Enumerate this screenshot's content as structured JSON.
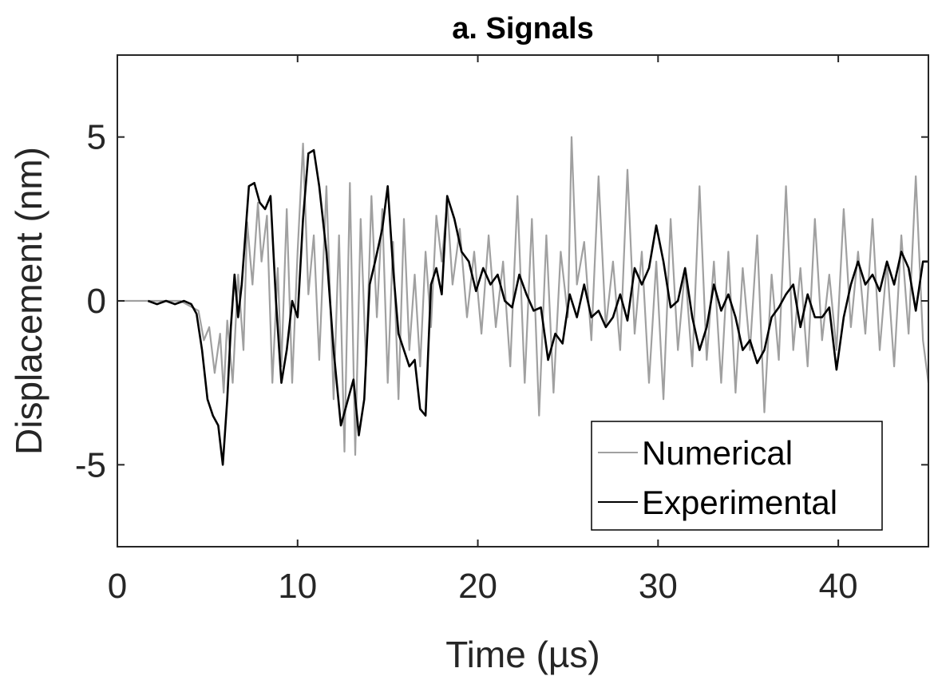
{
  "chart_data": {
    "type": "line",
    "title": "a. Signals",
    "xlabel": "Time (µs)",
    "ylabel": "Displacement (nm)",
    "xlim": [
      0,
      45
    ],
    "ylim": [
      -7.5,
      7.5
    ],
    "xticks": [
      0,
      10,
      20,
      30,
      40
    ],
    "xtick_labels": [
      "0",
      "10",
      "20",
      "30",
      "40"
    ],
    "yticks": [
      -5,
      0,
      5
    ],
    "ytick_labels": [
      "-5",
      "0",
      "5"
    ],
    "grid": false,
    "legend_position": "bottom-right",
    "series": [
      {
        "name": "Numerical",
        "color": "#a0a0a0",
        "x": [
          0,
          3.5,
          4.5,
          4.8,
          5.1,
          5.4,
          5.7,
          5.9,
          6.1,
          6.4,
          6.7,
          7.0,
          7.2,
          7.5,
          7.8,
          8.0,
          8.3,
          8.6,
          8.9,
          9.1,
          9.4,
          9.7,
          10.0,
          10.3,
          10.6,
          10.9,
          11.2,
          11.6,
          12.0,
          12.3,
          12.6,
          12.9,
          13.2,
          13.5,
          13.8,
          14.1,
          14.4,
          14.7,
          15.0,
          15.3,
          15.6,
          15.9,
          16.2,
          16.5,
          16.8,
          17.1,
          17.4,
          17.7,
          18.0,
          18.3,
          18.6,
          19.0,
          19.4,
          19.8,
          20.2,
          20.6,
          21.0,
          21.4,
          21.8,
          22.2,
          22.6,
          23.0,
          23.4,
          23.8,
          24.2,
          24.6,
          25.0,
          25.2,
          25.5,
          25.9,
          26.3,
          26.7,
          27.1,
          27.5,
          27.9,
          28.3,
          28.7,
          29.1,
          29.5,
          29.9,
          30.3,
          30.7,
          31.1,
          31.5,
          31.9,
          32.3,
          32.7,
          33.1,
          33.5,
          33.9,
          34.3,
          34.7,
          35.1,
          35.5,
          35.9,
          36.3,
          36.7,
          37.1,
          37.5,
          37.9,
          38.3,
          38.7,
          39.1,
          39.5,
          39.9,
          40.3,
          40.7,
          41.1,
          41.5,
          41.9,
          42.3,
          42.7,
          43.1,
          43.5,
          43.9,
          44.3,
          44.7,
          45.0
        ],
        "y": [
          0,
          0,
          -0.3,
          -1.2,
          -0.8,
          -2.2,
          -1.0,
          -2.8,
          -0.6,
          -2.5,
          0.8,
          -1.5,
          2.4,
          0.5,
          3.0,
          1.2,
          2.6,
          -2.5,
          1.0,
          -2.0,
          2.8,
          -2.5,
          1.5,
          4.8,
          0.2,
          2.0,
          -1.8,
          3.5,
          -3.0,
          2.0,
          -4.6,
          3.6,
          -4.7,
          2.5,
          -2.0,
          3.2,
          -0.5,
          2.8,
          -2.5,
          1.8,
          -3.0,
          2.5,
          -1.5,
          0.8,
          -2.0,
          1.5,
          -0.8,
          2.6,
          1.2,
          3.0,
          0.5,
          2.2,
          -0.5,
          1.5,
          -1.0,
          2.0,
          -0.8,
          1.2,
          -2.0,
          3.2,
          -2.5,
          2.5,
          -3.5,
          2.0,
          -2.8,
          1.5,
          -0.5,
          5.0,
          0.5,
          1.8,
          -1.2,
          3.8,
          -0.8,
          1.2,
          -1.5,
          4.0,
          -1.0,
          1.5,
          -2.5,
          1.2,
          -3.0,
          2.5,
          -1.5,
          1.0,
          -2.0,
          3.5,
          -1.8,
          1.2,
          -2.5,
          1.5,
          -2.8,
          1.0,
          -1.5,
          2.0,
          -3.4,
          0.8,
          -1.8,
          3.5,
          -1.5,
          1.0,
          -2.0,
          2.5,
          -1.2,
          0.8,
          -1.5,
          2.8,
          -0.8,
          1.5,
          -1.0,
          2.5,
          -1.5,
          1.2,
          -2.0,
          2.0,
          -1.0,
          3.8,
          -1.2,
          -2.5
        ]
      },
      {
        "name": "Experimental",
        "color": "#000000",
        "x": [
          1.7,
          2.2,
          2.7,
          3.2,
          3.7,
          4.1,
          4.4,
          4.7,
          5.0,
          5.3,
          5.6,
          5.85,
          6.1,
          6.3,
          6.5,
          6.7,
          6.9,
          7.1,
          7.3,
          7.6,
          7.9,
          8.2,
          8.5,
          8.8,
          9.1,
          9.4,
          9.7,
          10.0,
          10.3,
          10.6,
          10.9,
          11.2,
          11.6,
          12.0,
          12.4,
          12.8,
          13.1,
          13.4,
          13.7,
          14.0,
          14.3,
          14.7,
          15.0,
          15.3,
          15.6,
          15.9,
          16.2,
          16.5,
          16.8,
          17.1,
          17.4,
          17.7,
          18.0,
          18.3,
          18.7,
          19.1,
          19.5,
          19.9,
          20.3,
          20.7,
          21.1,
          21.5,
          21.9,
          22.3,
          22.7,
          23.1,
          23.5,
          23.9,
          24.3,
          24.7,
          25.1,
          25.5,
          25.9,
          26.3,
          26.7,
          27.1,
          27.5,
          27.9,
          28.3,
          28.7,
          29.1,
          29.5,
          29.9,
          30.3,
          30.7,
          31.1,
          31.5,
          31.9,
          32.3,
          32.7,
          33.1,
          33.5,
          33.9,
          34.3,
          34.7,
          35.1,
          35.5,
          35.9,
          36.3,
          36.7,
          37.1,
          37.5,
          37.9,
          38.3,
          38.7,
          39.1,
          39.5,
          39.9,
          40.3,
          40.7,
          41.1,
          41.5,
          41.9,
          42.3,
          42.7,
          43.1,
          43.5,
          43.9,
          44.3,
          44.7,
          45.0
        ],
        "y": [
          0,
          -0.1,
          0,
          -0.1,
          0,
          -0.1,
          -0.4,
          -1.5,
          -3.0,
          -3.5,
          -3.8,
          -5.0,
          -3.0,
          -0.8,
          0.8,
          -0.5,
          0.5,
          2.0,
          3.5,
          3.6,
          3.0,
          2.8,
          3.2,
          0,
          -2.5,
          -1.5,
          0,
          -0.5,
          2.5,
          4.5,
          4.6,
          3.5,
          1.5,
          -1.5,
          -3.8,
          -3.0,
          -2.4,
          -4.1,
          -3.0,
          0.5,
          1.2,
          2.2,
          3.5,
          1.0,
          -1.0,
          -1.5,
          -2.0,
          -1.8,
          -3.3,
          -3.5,
          0.5,
          1.0,
          0.2,
          3.2,
          2.5,
          1.5,
          1.2,
          0.3,
          1.0,
          0.5,
          0.8,
          0,
          -0.2,
          0.8,
          0.2,
          -0.3,
          -0.2,
          -1.8,
          -1.0,
          -1.3,
          0.2,
          -0.5,
          0.5,
          -0.5,
          -0.3,
          -0.8,
          -0.5,
          0.2,
          -0.6,
          1.0,
          0.5,
          1.0,
          2.3,
          1.2,
          -0.2,
          0,
          1.0,
          -0.5,
          -1.5,
          -0.8,
          0.5,
          -0.3,
          0.2,
          -0.5,
          -1.5,
          -1.2,
          -1.9,
          -1.5,
          -0.5,
          -0.2,
          0.2,
          0.5,
          -0.8,
          0.2,
          -0.5,
          -0.5,
          -0.2,
          -2.1,
          -0.5,
          0.5,
          1.2,
          0.5,
          0.8,
          0.3,
          1.2,
          0.5,
          1.5,
          1.0,
          -0.3,
          1.2,
          1.2
        ]
      }
    ]
  }
}
